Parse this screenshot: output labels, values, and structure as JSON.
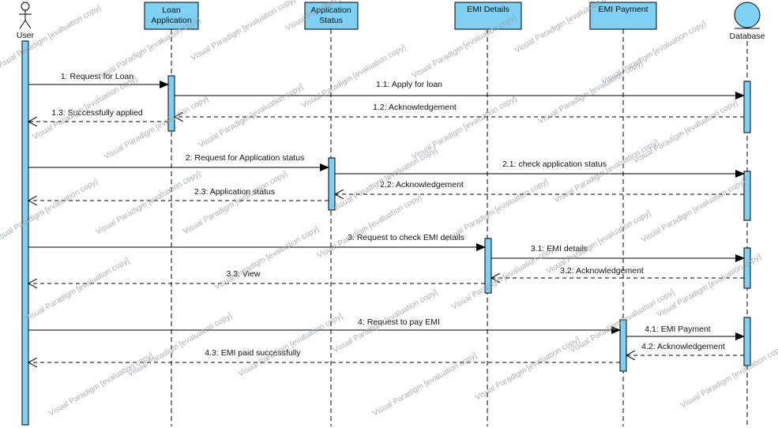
{
  "participants": [
    {
      "id": "user",
      "label": "User",
      "kind": "actor"
    },
    {
      "id": "loan",
      "label": "Loan Application",
      "line1": "Loan",
      "line2": "Application",
      "kind": "object"
    },
    {
      "id": "status",
      "label": "Application Status",
      "line1": "Application",
      "line2": "Status",
      "kind": "object"
    },
    {
      "id": "emi",
      "label": "EMI Details",
      "line1": "EMI Details",
      "line2": "",
      "kind": "object"
    },
    {
      "id": "pay",
      "label": "EMI Payment",
      "line1": "EMI Payment",
      "line2": "",
      "kind": "object"
    },
    {
      "id": "db",
      "label": "Database",
      "kind": "entity"
    }
  ],
  "messages": [
    {
      "label": "1: Request for Loan",
      "from": "user",
      "to": "loan",
      "type": "sync"
    },
    {
      "label": "1.1: Apply for loan",
      "from": "loan",
      "to": "db",
      "type": "sync"
    },
    {
      "label": "1.2: Acknowledgement",
      "from": "db",
      "to": "loan",
      "type": "return"
    },
    {
      "label": "1.3: Successfully applied",
      "from": "loan",
      "to": "user",
      "type": "return"
    },
    {
      "label": "2: Request for Application status",
      "from": "user",
      "to": "status",
      "type": "sync"
    },
    {
      "label": "2.1: check application status",
      "from": "status",
      "to": "db",
      "type": "sync"
    },
    {
      "label": "2.2: Acknowledgement",
      "from": "db",
      "to": "status",
      "type": "return"
    },
    {
      "label": "2.3: Application status",
      "from": "status",
      "to": "user",
      "type": "return"
    },
    {
      "label": "3: Request to check EMI details",
      "from": "user",
      "to": "emi",
      "type": "sync"
    },
    {
      "label": "3.1: EMI details",
      "from": "emi",
      "to": "db",
      "type": "sync"
    },
    {
      "label": "3.2: Acknowledgement",
      "from": "db",
      "to": "emi",
      "type": "return"
    },
    {
      "label": "3.3: View",
      "from": "emi",
      "to": "user",
      "type": "return"
    },
    {
      "label": "4: Request to pay EMI",
      "from": "user",
      "to": "pay",
      "type": "sync"
    },
    {
      "label": "4.1: EMI Payment",
      "from": "pay",
      "to": "db",
      "type": "sync"
    },
    {
      "label": "4.2: Acknowledgement",
      "from": "db",
      "to": "pay",
      "type": "return"
    },
    {
      "label": "4.3: EMI paid successfully",
      "from": "pay",
      "to": "user",
      "type": "return"
    }
  ],
  "watermark": "Visual Paradigm [evaluation copy]",
  "colors": {
    "box": "#7fd0f2",
    "activation": "#7fd0f2",
    "stroke": "#000000",
    "watermark": "#9aa0a6"
  }
}
